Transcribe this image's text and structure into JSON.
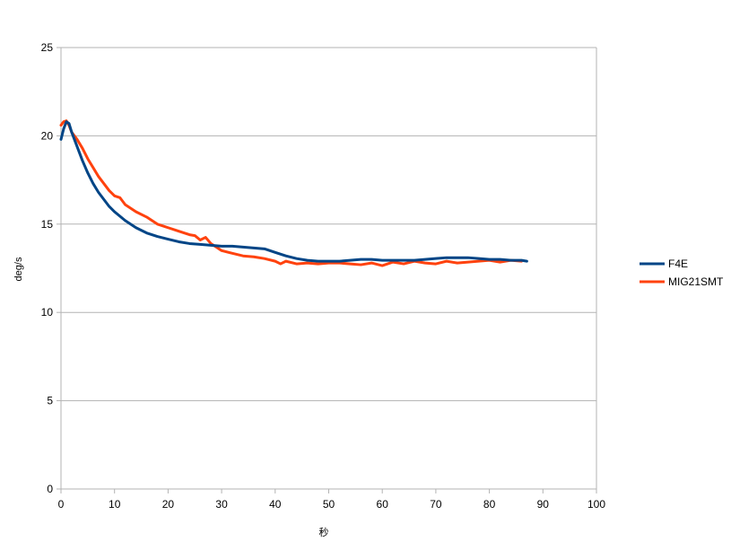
{
  "chart_data": {
    "type": "line",
    "xlabel": "秒",
    "ylabel": "deg/s",
    "xlim": [
      0,
      100
    ],
    "ylim": [
      0,
      25
    ],
    "x_ticks": [
      0,
      10,
      20,
      30,
      40,
      50,
      60,
      70,
      80,
      90,
      100
    ],
    "y_ticks": [
      0,
      5,
      10,
      15,
      20,
      25
    ],
    "x_tick_labels": [
      "0",
      "10",
      "20",
      "30",
      "40",
      "50",
      "60",
      "70",
      "80",
      "90",
      "100"
    ],
    "y_tick_labels": [
      "0",
      "5",
      "10",
      "15",
      "20",
      "25"
    ],
    "grid": "horizontal",
    "legend_position": "right",
    "series": [
      {
        "name": "F4E",
        "color": "#004586",
        "x": [
          0,
          0.5,
          1,
          1.5,
          2,
          3,
          4,
          5,
          6,
          7,
          8,
          9,
          10,
          12,
          14,
          16,
          18,
          20,
          22,
          24,
          26,
          28,
          30,
          32,
          34,
          36,
          38,
          40,
          42,
          44,
          46,
          48,
          50,
          52,
          54,
          56,
          58,
          60,
          62,
          64,
          66,
          68,
          70,
          72,
          74,
          76,
          78,
          80,
          82,
          84,
          86,
          87
        ],
        "y": [
          19.8,
          20.4,
          20.8,
          20.7,
          20.2,
          19.4,
          18.6,
          17.9,
          17.3,
          16.8,
          16.4,
          16.0,
          15.7,
          15.2,
          14.8,
          14.5,
          14.3,
          14.15,
          14.0,
          13.9,
          13.85,
          13.8,
          13.75,
          13.75,
          13.7,
          13.65,
          13.6,
          13.4,
          13.2,
          13.05,
          12.95,
          12.9,
          12.9,
          12.9,
          12.95,
          13.0,
          13.0,
          12.95,
          12.95,
          12.95,
          12.95,
          13.0,
          13.05,
          13.1,
          13.1,
          13.1,
          13.05,
          13.0,
          13.0,
          12.95,
          12.95,
          12.9
        ]
      },
      {
        "name": "MIG21SMT",
        "color": "#ff420e",
        "x": [
          0,
          0.5,
          1,
          1.5,
          2,
          3,
          4,
          5,
          6,
          7,
          8,
          9,
          10,
          11,
          12,
          14,
          16,
          18,
          20,
          22,
          24,
          25,
          26,
          27,
          28,
          29,
          30,
          32,
          34,
          36,
          38,
          40,
          41,
          42,
          44,
          46,
          48,
          50,
          52,
          54,
          56,
          58,
          60,
          62,
          64,
          66,
          68,
          70,
          72,
          74,
          76,
          78,
          80,
          82,
          84,
          86
        ],
        "y": [
          20.6,
          20.8,
          20.85,
          20.6,
          20.2,
          19.8,
          19.3,
          18.7,
          18.2,
          17.7,
          17.3,
          16.9,
          16.6,
          16.5,
          16.1,
          15.7,
          15.4,
          15.0,
          14.8,
          14.6,
          14.4,
          14.35,
          14.1,
          14.25,
          13.9,
          13.7,
          13.5,
          13.35,
          13.2,
          13.15,
          13.05,
          12.9,
          12.75,
          12.9,
          12.75,
          12.8,
          12.75,
          12.8,
          12.8,
          12.75,
          12.7,
          12.8,
          12.65,
          12.85,
          12.75,
          12.9,
          12.8,
          12.75,
          12.9,
          12.8,
          12.85,
          12.9,
          12.95,
          12.85,
          12.95,
          12.9
        ]
      }
    ]
  }
}
